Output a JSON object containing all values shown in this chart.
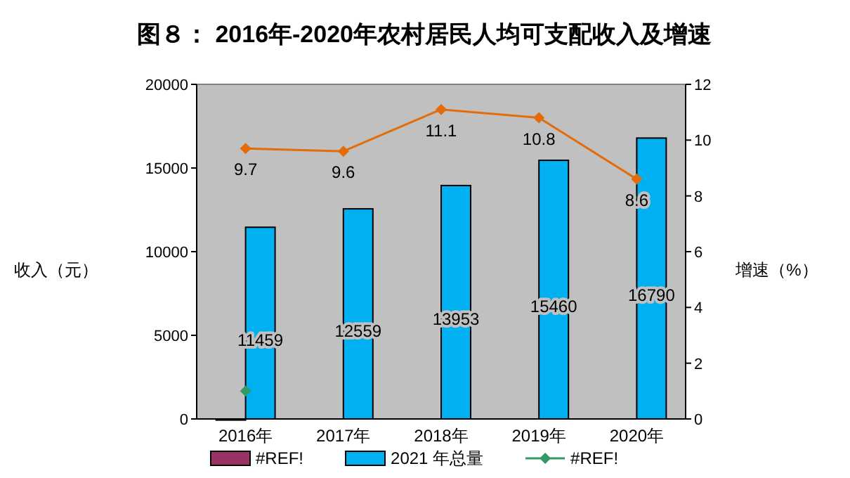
{
  "chart_data": {
    "type": "bar",
    "title": "图８：  2016年-2020年农村居民人均可支配收入及增速",
    "categories": [
      "2016年",
      "2017年",
      "2018年",
      "2019年",
      "2020年"
    ],
    "ylabel": "收入（元）",
    "y2label": "增速（%）",
    "ylim": [
      0,
      20000
    ],
    "yticks": [
      0,
      5000,
      10000,
      15000,
      20000
    ],
    "y2lim": [
      0,
      12
    ],
    "y2ticks": [
      0,
      2,
      4,
      6,
      8,
      10,
      12
    ],
    "grid": false,
    "legend": "bottom",
    "series": [
      {
        "name": "#REF!",
        "color": "#993366",
        "values": [
          0,
          null,
          null,
          null,
          null
        ]
      },
      {
        "name": "2021 年总量",
        "color": "#00b0f0",
        "values": [
          11459,
          12559,
          13953,
          15460,
          16790
        ],
        "value_labels": [
          "11459",
          "12559",
          "13953",
          "15460",
          "16790"
        ]
      },
      {
        "type": "line",
        "axis": "y2",
        "color": "#e36c09",
        "marker": "diamond",
        "values": [
          9.7,
          9.6,
          11.1,
          10.8,
          8.6
        ],
        "value_labels": [
          "9.7",
          "9.6",
          "11.1",
          "10.8",
          "8.6"
        ]
      },
      {
        "name": "#REF!",
        "type": "line",
        "axis": "y2",
        "color": "#339966",
        "marker": "diamond",
        "values": [
          1,
          null,
          null,
          null,
          null
        ]
      }
    ]
  }
}
